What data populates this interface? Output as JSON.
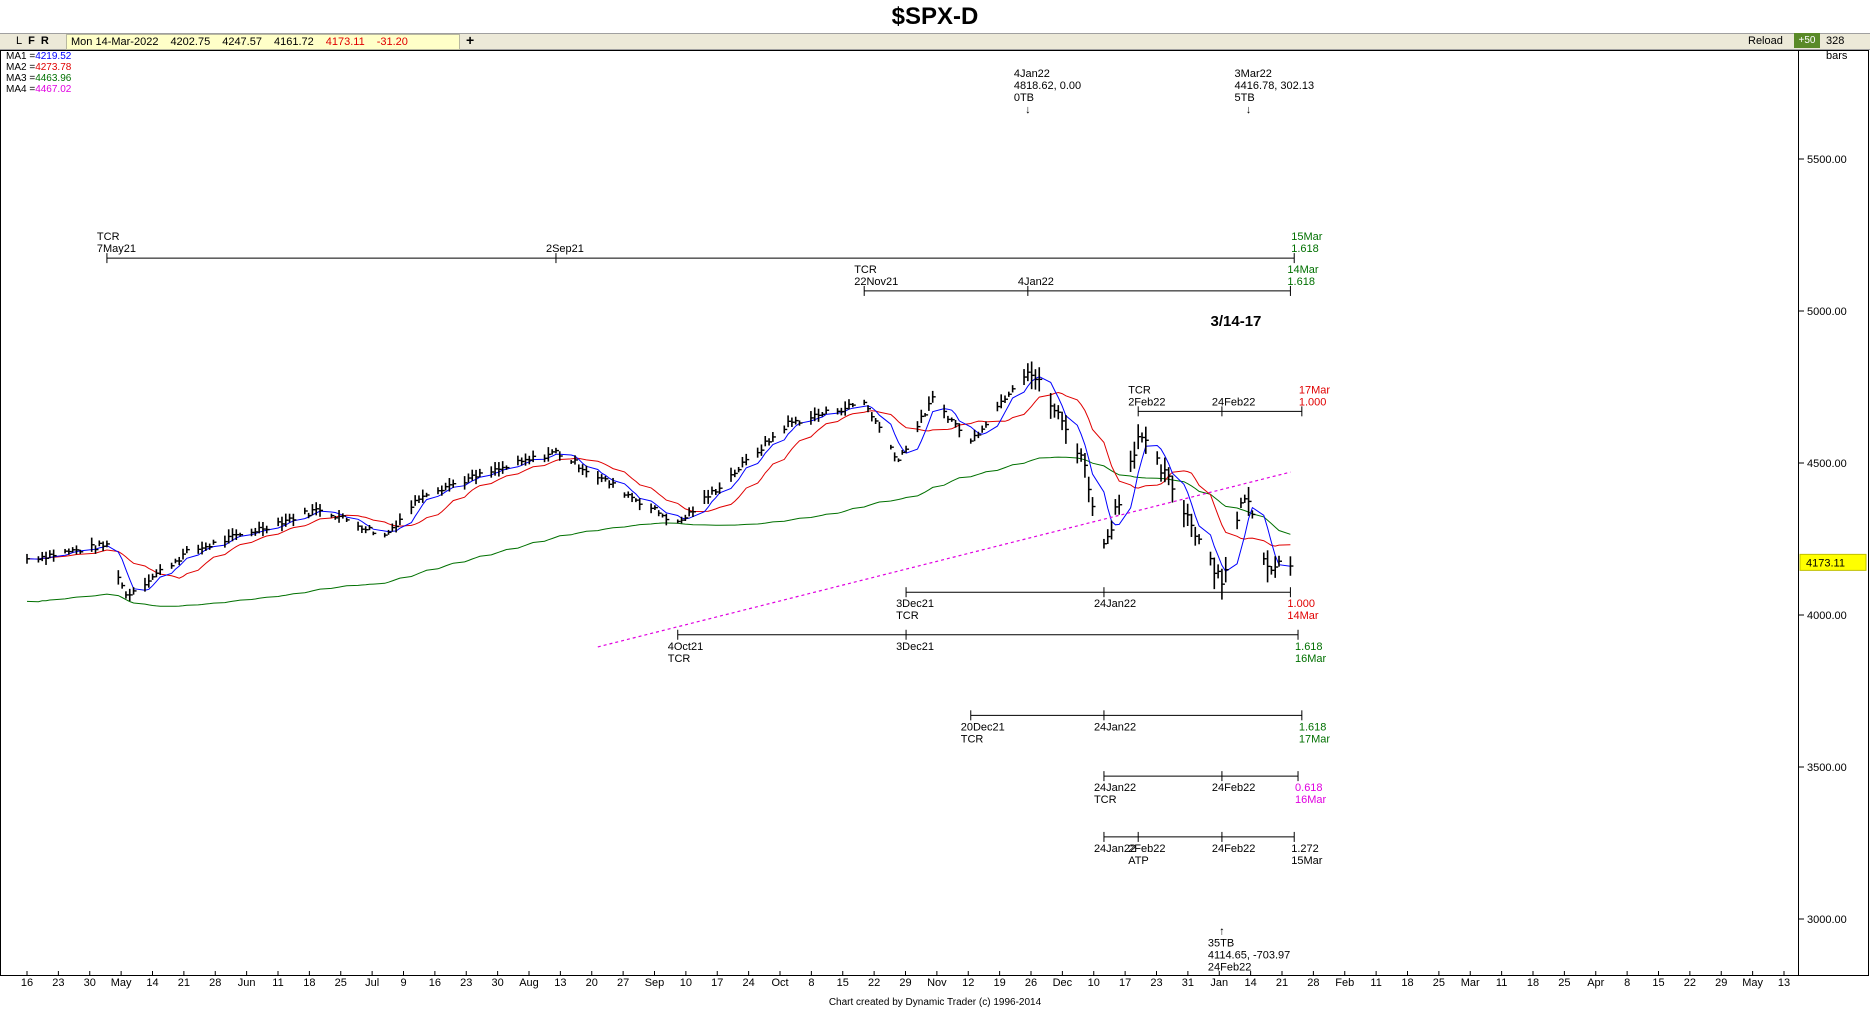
{
  "title": "$SPX-D",
  "toolbar": {
    "lfr": [
      "L",
      "F",
      "R"
    ],
    "date": "Mon 14-Mar-2022",
    "open": "4202.75",
    "high": "4247.57",
    "low": "4161.72",
    "close": "4173.11",
    "change": "-31.20",
    "plus_label": "+",
    "reload_label": "Reload",
    "bars_step": "+50",
    "bars_count": "328 bars"
  },
  "moving_averages": [
    {
      "label": "MA1 =",
      "value": "4219.52",
      "color": "#0000ff"
    },
    {
      "label": "MA2 =",
      "value": "4273.78",
      "color": "#e00000"
    },
    {
      "label": "MA3 =",
      "value": "4463.96",
      "color": "#007000"
    },
    {
      "label": "MA4 =",
      "value": "4467.02",
      "color": "#e000e0"
    }
  ],
  "footer": "Chart created by Dynamic Trader  (c) 1996-2014",
  "chart_data": {
    "type": "bar",
    "title": "$SPX-D",
    "ylim": [
      2800,
      5850
    ],
    "y_ticks": [
      "5500.00",
      "5000.00",
      "4500.00",
      "4000.00",
      "3500.00",
      "3000.00"
    ],
    "y_tick_values": [
      5500,
      5000,
      4500,
      4000,
      3500,
      3000
    ],
    "last_price_label": "4173.11",
    "last_price": 4173.11,
    "x_tick_labels": [
      "16",
      "23",
      "30",
      "May",
      "14",
      "21",
      "28",
      "Jun",
      "11",
      "18",
      "25",
      "Jul",
      "9",
      "16",
      "23",
      "30",
      "Aug",
      "13",
      "20",
      "27",
      "Sep",
      "10",
      "17",
      "24",
      "Oct",
      "8",
      "15",
      "22",
      "29",
      "Nov",
      "12",
      "19",
      "26",
      "Dec",
      "10",
      "17",
      "23",
      "31",
      "Jan",
      "14",
      "21",
      "28",
      "Feb",
      "11",
      "18",
      "25",
      "Mar",
      "11",
      "18",
      "25",
      "Apr",
      "8",
      "15",
      "22",
      "29",
      "May",
      "13"
    ],
    "price_anchors": [
      {
        "date": "16Apr21",
        "value": 4185
      },
      {
        "date": "7May21",
        "value": 4230
      },
      {
        "date": "12May21",
        "value": 4065
      },
      {
        "date": "28May21",
        "value": 4205
      },
      {
        "date": "2Jul21",
        "value": 4350
      },
      {
        "date": "19Jul21",
        "value": 4260
      },
      {
        "date": "29Jul21",
        "value": 4400
      },
      {
        "date": "2Sep21",
        "value": 4537
      },
      {
        "date": "4Oct21",
        "value": 4300
      },
      {
        "date": "2Nov21",
        "value": 4630
      },
      {
        "date": "22Nov21",
        "value": 4700
      },
      {
        "date": "1Dec21",
        "value": 4510
      },
      {
        "date": "10Dec21",
        "value": 4710
      },
      {
        "date": "20Dec21",
        "value": 4570
      },
      {
        "date": "4Jan22",
        "value": 4818
      },
      {
        "date": "18Jan22",
        "value": 4530
      },
      {
        "date": "24Jan22",
        "value": 4222
      },
      {
        "date": "2Feb22",
        "value": 4590
      },
      {
        "date": "11Feb22",
        "value": 4420
      },
      {
        "date": "24Feb22",
        "value": 4114
      },
      {
        "date": "2Mar22",
        "value": 4400
      },
      {
        "date": "8Mar22",
        "value": 4170
      },
      {
        "date": "14Mar22",
        "value": 4173
      }
    ],
    "annotations": [
      {
        "lines": [
          "4Jan22",
          "4818.62, 0.00",
          "0TB"
        ],
        "date": "4Jan22",
        "price": 5770,
        "arrow": "down",
        "color": "#000000"
      },
      {
        "lines": [
          "3Mar22",
          "4416.78, 302.13",
          "5TB"
        ],
        "date": "3Mar22",
        "price": 5770,
        "arrow": "down",
        "color": "#000000"
      },
      {
        "lines": [
          "35TB",
          "4114.65, -703.97",
          "24Feb22"
        ],
        "date": "24Feb22",
        "price": 2910,
        "arrow": "up",
        "color": "#000000"
      },
      {
        "lines": [
          "3/14-17"
        ],
        "date": "21Feb22",
        "price": 4950,
        "bold": true,
        "color": "#000000"
      }
    ],
    "time_projections": [
      {
        "price": 5174,
        "start": "7May21",
        "end": "15Mar22",
        "labels": [
          {
            "date": "7May21",
            "lines": [
              "TCR",
              "7May21"
            ],
            "above": true
          },
          {
            "date": "2Sep21",
            "lines": [
              "2Sep21"
            ],
            "above": true
          }
        ],
        "end_lines": [
          "15Mar",
          "1.618"
        ],
        "color": "#007000"
      },
      {
        "price": 5066,
        "start": "22Nov21",
        "end": "14Mar22",
        "labels": [
          {
            "date": "22Nov21",
            "lines": [
              "TCR",
              "22Nov21"
            ],
            "above": true
          },
          {
            "date": "4Jan22",
            "lines": [
              "4Jan22"
            ],
            "above": true
          }
        ],
        "end_lines": [
          "14Mar",
          "1.618"
        ],
        "color": "#007000"
      },
      {
        "price": 4670,
        "start": "2Feb22",
        "end": "17Mar22",
        "labels": [
          {
            "date": "2Feb22",
            "lines": [
              "TCR",
              "2Feb22"
            ],
            "above": true
          },
          {
            "date": "24Feb22",
            "lines": [
              "24Feb22"
            ],
            "above": true
          }
        ],
        "end_lines": [
          "17Mar",
          "1.000"
        ],
        "color": "#e00000"
      },
      {
        "price": 4075,
        "start": "3Dec21",
        "end": "14Mar22",
        "labels": [
          {
            "date": "3Dec21",
            "lines": [
              "3Dec21",
              "TCR"
            ],
            "above": false
          },
          {
            "date": "24Jan22",
            "lines": [
              "24Jan22"
            ],
            "above": false
          }
        ],
        "end_lines": [
          "1.000",
          "14Mar"
        ],
        "color": "#e00000"
      },
      {
        "price": 3935,
        "start": "4Oct21",
        "end": "16Mar22",
        "labels": [
          {
            "date": "4Oct21",
            "lines": [
              "4Oct21",
              "TCR"
            ],
            "above": false
          },
          {
            "date": "3Dec21",
            "lines": [
              "3Dec21"
            ],
            "above": false
          }
        ],
        "end_lines": [
          "1.618",
          "16Mar"
        ],
        "color": "#007000"
      },
      {
        "price": 3670,
        "start": "20Dec21",
        "end": "17Mar22",
        "labels": [
          {
            "date": "20Dec21",
            "lines": [
              "20Dec21",
              "TCR"
            ],
            "above": false
          },
          {
            "date": "24Jan22",
            "lines": [
              "24Jan22"
            ],
            "above": false
          }
        ],
        "end_lines": [
          "1.618",
          "17Mar"
        ],
        "color": "#007000"
      },
      {
        "price": 3470,
        "start": "24Jan22",
        "end": "16Mar22",
        "labels": [
          {
            "date": "24Jan22",
            "lines": [
              "24Jan22",
              "TCR"
            ],
            "above": false
          },
          {
            "date": "24Feb22",
            "lines": [
              "24Feb22"
            ],
            "above": false
          }
        ],
        "end_lines": [
          "0.618",
          "16Mar"
        ],
        "color": "#e000e0"
      },
      {
        "price": 3270,
        "start": "24Jan22",
        "end": "15Mar22",
        "labels": [
          {
            "date": "24Jan22",
            "lines": [
              "24Jan22"
            ],
            "above": false
          },
          {
            "date": "2Feb22",
            "lines": [
              "2Feb22",
              "ATP"
            ],
            "above": false
          },
          {
            "date": "24Feb22",
            "lines": [
              "24Feb22"
            ],
            "above": false
          }
        ],
        "end_lines": [
          "1.272",
          "15Mar"
        ],
        "color": "#000000"
      }
    ],
    "trendline": {
      "start": "13Sep21",
      "start_value": 3895,
      "end": "14Mar22",
      "end_value": 4470,
      "color": "#e000e0",
      "style": "dotted"
    },
    "xlabel": "",
    "ylabel": "",
    "grid": false
  }
}
